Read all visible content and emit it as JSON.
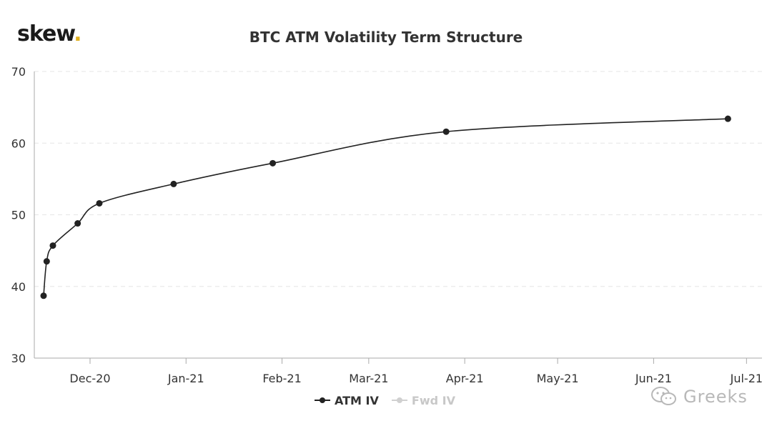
{
  "logo": {
    "text": "skew",
    "dot": "."
  },
  "watermark": {
    "text": "Greeks",
    "icon": "wechat-icon"
  },
  "colors": {
    "series": "#222222",
    "inactive": "#c8c8c8",
    "axis": "#aaaaaa",
    "grid": "#e6e6e6",
    "logo_dot": "#e0b020"
  },
  "chart_data": {
    "type": "line",
    "title": "BTC ATM Volatility Term Structure",
    "xlabel": "",
    "ylabel": "",
    "x_type": "date",
    "xlim": [
      "2020-11-13",
      "2021-07-06"
    ],
    "ylim": [
      30,
      70
    ],
    "yticks": [
      30,
      40,
      50,
      60,
      70
    ],
    "xticks": [
      {
        "date": "2020-12-01",
        "label": "Dec-20"
      },
      {
        "date": "2021-01-01",
        "label": "Jan-21"
      },
      {
        "date": "2021-02-01",
        "label": "Feb-21"
      },
      {
        "date": "2021-03-01",
        "label": "Mar-21"
      },
      {
        "date": "2021-04-01",
        "label": "Apr-21"
      },
      {
        "date": "2021-05-01",
        "label": "May-21"
      },
      {
        "date": "2021-06-01",
        "label": "Jun-21"
      },
      {
        "date": "2021-07-01",
        "label": "Jul-21"
      }
    ],
    "grid": true,
    "legend_position": "bottom-center",
    "series": [
      {
        "name": "ATM IV",
        "active": true,
        "points": [
          {
            "x": "2020-11-16",
            "y": 38.7
          },
          {
            "x": "2020-11-17",
            "y": 43.5
          },
          {
            "x": "2020-11-19",
            "y": 45.7
          },
          {
            "x": "2020-11-27",
            "y": 48.8
          },
          {
            "x": "2020-12-04",
            "y": 51.6
          },
          {
            "x": "2020-12-28",
            "y": 54.3
          },
          {
            "x": "2021-01-29",
            "y": 57.2
          },
          {
            "x": "2021-03-26",
            "y": 61.6
          },
          {
            "x": "2021-06-25",
            "y": 63.4
          }
        ]
      },
      {
        "name": "Fwd IV",
        "active": false,
        "points": []
      }
    ]
  }
}
